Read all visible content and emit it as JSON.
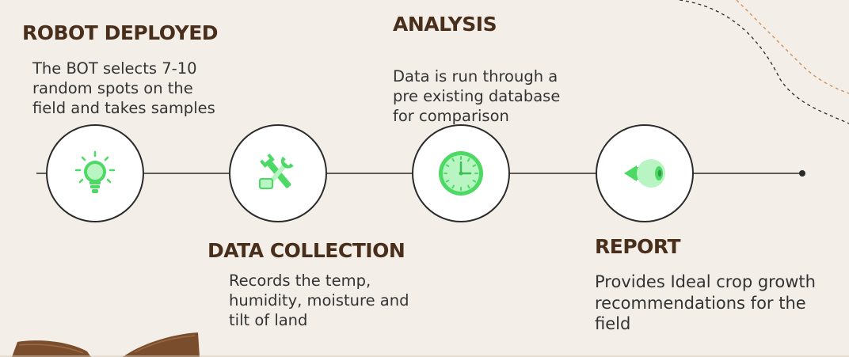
{
  "colors": {
    "background": "#f3efe8",
    "heading": "#4a2e1c",
    "text": "#333333",
    "icon_accent": "#4cd964",
    "icon_light": "#b9f5c3",
    "line": "#2b2b2b"
  },
  "steps": [
    {
      "title": "ROBOT DEPLOYED",
      "description_lines": [
        "The BOT selects 7-10",
        "random spots on the",
        "field and takes samples"
      ],
      "icon": "lightbulb-icon"
    },
    {
      "title": "DATA COLLECTION",
      "description_lines": [
        "Records the temp,",
        "humidity, moisture and",
        "tilt of land"
      ],
      "icon": "tools-icon"
    },
    {
      "title": "ANALYSIS",
      "description_lines": [
        "Data is run through a",
        "pre existing database",
        "for comparison"
      ],
      "icon": "clock-icon"
    },
    {
      "title": "REPORT",
      "description_lines": [
        "Provides Ideal crop growth",
        "recommendations for the",
        "field"
      ],
      "icon": "eye-icon"
    }
  ]
}
